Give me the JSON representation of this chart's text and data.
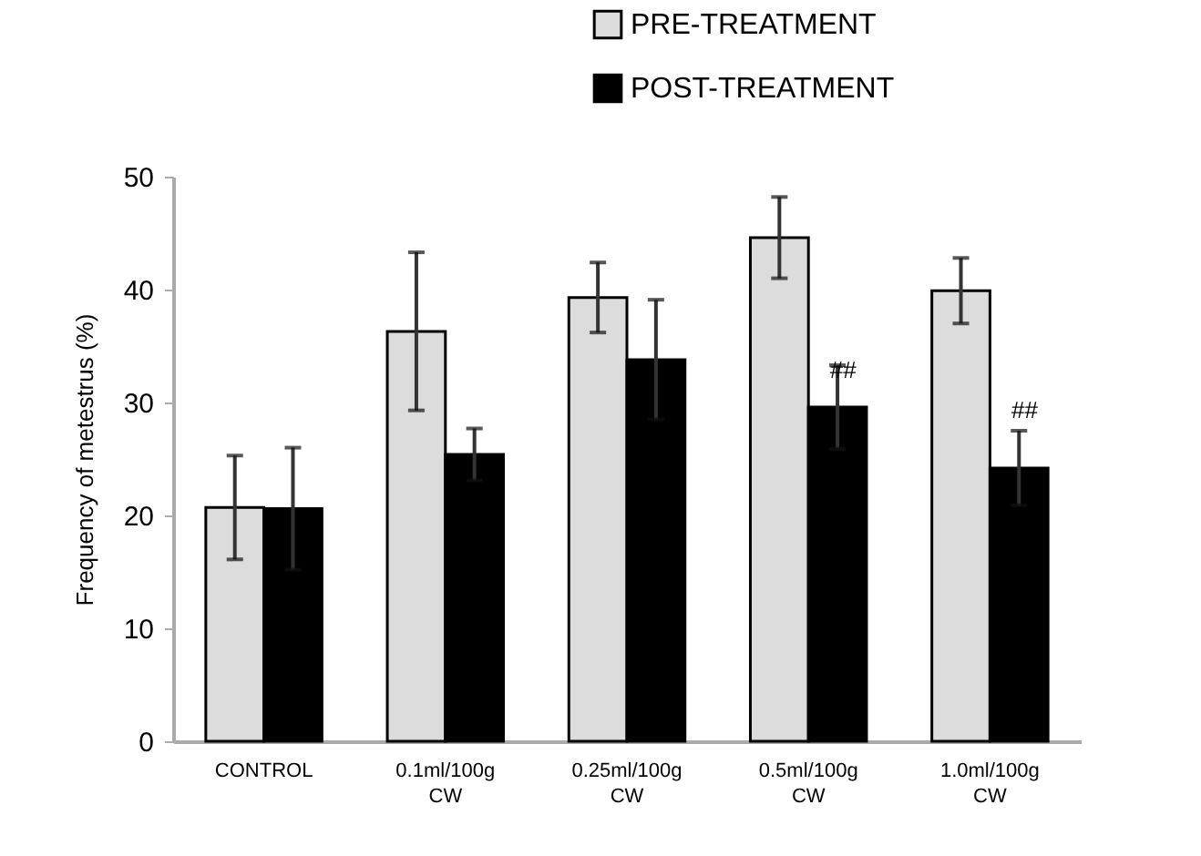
{
  "chart_data": {
    "type": "bar",
    "categories": [
      "CONTROL",
      "0.1ml/100g\nCW",
      "0.25ml/100g\nCW",
      "0.5ml/100g\nCW",
      "1.0ml/100g\nCW"
    ],
    "ylabel": "Frequency of metestrus (%)",
    "ylim": [
      0,
      50
    ],
    "yticks": [
      0,
      10,
      20,
      30,
      40,
      50
    ],
    "grid": false,
    "legend": "top right",
    "series": [
      {
        "name": "PRE-TREATMENT",
        "color": "#dcdcdc",
        "values": [
          20.7,
          36.3,
          39.3,
          44.6,
          39.9
        ],
        "errors": [
          4.6,
          7.0,
          3.1,
          3.6,
          2.9
        ]
      },
      {
        "name": "POST-TREATMENT",
        "color": "#000000",
        "values": [
          20.6,
          25.4,
          33.8,
          29.6,
          24.2
        ],
        "errors": [
          5.4,
          2.3,
          5.3,
          3.7,
          3.3
        ]
      }
    ],
    "annotations": [
      {
        "text": "##",
        "x": "0.5ml/100g\nCW",
        "y": 32.8
      },
      {
        "text": "##",
        "x": "1.0ml/100g\nCW",
        "y": 29.3
      }
    ]
  }
}
